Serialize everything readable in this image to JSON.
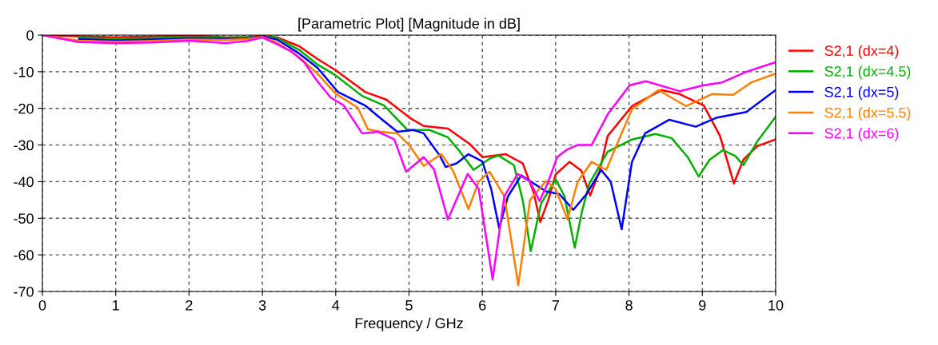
{
  "chart_data": {
    "type": "line",
    "title": "[Parametric Plot] [Magnitude in dB]",
    "xlabel": "Frequency / GHz",
    "xlim": [
      0,
      10
    ],
    "ylim": [
      -70,
      0
    ],
    "xticks": [
      0,
      1,
      2,
      3,
      4,
      5,
      6,
      7,
      8,
      9,
      10
    ],
    "yticks": [
      -70,
      -60,
      -50,
      -40,
      -30,
      -20,
      -10,
      0
    ],
    "grid": true,
    "legend": "top right",
    "line_style": "solid",
    "marker": "none",
    "series": [
      {
        "name": "S2,1 (dx=4)",
        "color": "#ff0000",
        "x": [
          0,
          0.5,
          1,
          1.5,
          2,
          2.5,
          2.8,
          3,
          3.2,
          3.5,
          3.75,
          4,
          4.4,
          4.69,
          5.02,
          5.2,
          5.53,
          5.82,
          6.0,
          6.32,
          6.55,
          6.7,
          6.79,
          6.9,
          7.0,
          7.19,
          7.35,
          7.47,
          7.6,
          7.71,
          8.04,
          8.44,
          8.69,
          9.02,
          9.24,
          9.43,
          9.56,
          9.75,
          10
        ],
        "values": [
          0,
          -0.3,
          -0.6,
          -0.4,
          -0.1,
          -0.6,
          -0.5,
          -0.2,
          -0.6,
          -3,
          -6.5,
          -9.6,
          -15.5,
          -17.6,
          -22.7,
          -24.8,
          -25.5,
          -29.6,
          -33.3,
          -32.5,
          -35,
          -43,
          -51,
          -45,
          -38,
          -34.6,
          -37,
          -43.8,
          -37,
          -27.5,
          -19.4,
          -15,
          -16.1,
          -19.2,
          -27.5,
          -40.5,
          -34,
          -30.3,
          -28.5
        ]
      },
      {
        "name": "S2,1 (dx=4.5)",
        "color": "#00b000",
        "x": [
          0.5,
          1,
          1.5,
          2,
          2.5,
          2.8,
          3,
          3.2,
          3.5,
          3.75,
          4,
          4.36,
          4.66,
          4.98,
          5.28,
          5.53,
          5.67,
          5.88,
          6.11,
          6.22,
          6.43,
          6.55,
          6.66,
          6.8,
          7.0,
          7.12,
          7.26,
          7.36,
          7.46,
          7.71,
          8.04,
          8.36,
          8.58,
          8.8,
          8.95,
          9.1,
          9.28,
          9.45,
          9.56,
          9.75,
          10
        ],
        "values": [
          -0.7,
          -1.0,
          -0.8,
          -0.5,
          -0.8,
          -0.7,
          -0.3,
          -0.8,
          -4,
          -8,
          -11,
          -16.6,
          -19.2,
          -25.9,
          -25.9,
          -27.9,
          -31.2,
          -36.8,
          -33.6,
          -32.9,
          -35.5,
          -45,
          -59,
          -46,
          -39.4,
          -44,
          -58,
          -48,
          -40.5,
          -31.8,
          -28.5,
          -27,
          -28.1,
          -33.3,
          -38.6,
          -34,
          -31.4,
          -33,
          -35.5,
          -29,
          -22.3
        ]
      },
      {
        "name": "S2,1 (dx=5)",
        "color": "#0000ff",
        "x": [
          0.5,
          1,
          1.5,
          2,
          2.5,
          2.8,
          3,
          3.2,
          3.5,
          3.75,
          4.03,
          4.4,
          4.66,
          4.84,
          5.06,
          5.2,
          5.42,
          5.5,
          5.65,
          5.81,
          6.0,
          6.12,
          6.23,
          6.35,
          6.53,
          6.87,
          7.05,
          7.24,
          7.42,
          7.62,
          7.75,
          7.9,
          8.04,
          8.22,
          8.55,
          8.91,
          9.2,
          9.6,
          10
        ],
        "values": [
          -1.1,
          -1.4,
          -1.2,
          -0.8,
          -1,
          -0.9,
          -0.4,
          -1.2,
          -5,
          -8.9,
          -15.5,
          -19.2,
          -23.5,
          -26.4,
          -25.9,
          -26.8,
          -32.9,
          -36,
          -35,
          -32.5,
          -34.5,
          -42,
          -52.7,
          -44,
          -38.3,
          -42.7,
          -43.4,
          -47.7,
          -43.4,
          -36.8,
          -40,
          -53,
          -34.6,
          -26.8,
          -23.1,
          -25,
          -22.5,
          -21,
          -15
        ]
      },
      {
        "name": "S2,1 (dx=5.5)",
        "color": "#ff8000",
        "x": [
          0,
          0.5,
          1,
          1.5,
          2,
          2.5,
          2.8,
          3,
          3.2,
          3.5,
          3.75,
          4.0,
          4.3,
          4.44,
          4.62,
          4.84,
          5.0,
          5.2,
          5.44,
          5.6,
          5.81,
          5.95,
          6.1,
          6.3,
          6.49,
          6.65,
          6.87,
          7.0,
          7.16,
          7.3,
          7.49,
          7.69,
          7.84,
          8.04,
          8.4,
          8.78,
          9.13,
          9.42,
          9.67,
          10
        ],
        "values": [
          0,
          -1.5,
          -1.8,
          -1.6,
          -1.2,
          -1.3,
          -1.1,
          -0.5,
          -2,
          -6,
          -10.5,
          -16,
          -19.8,
          -25.7,
          -26.4,
          -26.8,
          -30,
          -35.7,
          -32.5,
          -37,
          -47.5,
          -40,
          -37.3,
          -44,
          -68.3,
          -45,
          -39.8,
          -42,
          -50.3,
          -40,
          -34.6,
          -36.8,
          -29.6,
          -20.3,
          -15,
          -19.4,
          -16.1,
          -16.3,
          -12.9,
          -10.5
        ]
      },
      {
        "name": "S2,1 (dx=6)",
        "color": "#ff00ff",
        "x": [
          0,
          0.5,
          1,
          1.5,
          2,
          2.5,
          2.8,
          3,
          3.2,
          3.4,
          3.57,
          3.75,
          3.93,
          4.11,
          4.36,
          4.58,
          4.8,
          4.96,
          5.2,
          5.34,
          5.53,
          5.8,
          5.95,
          6.14,
          6.3,
          6.48,
          6.65,
          6.78,
          6.9,
          7.02,
          7.16,
          7.3,
          7.49,
          7.71,
          8.01,
          8.23,
          8.69,
          9.02,
          9.27,
          9.6,
          10
        ],
        "values": [
          0,
          -1.9,
          -2.2,
          -2.0,
          -1.5,
          -2.2,
          -1.6,
          -0.6,
          -2.5,
          -4.5,
          -7.4,
          -12.6,
          -17,
          -19.2,
          -26.8,
          -26.4,
          -28.5,
          -37.3,
          -33.3,
          -36.6,
          -50.3,
          -37.9,
          -42,
          -66.7,
          -44,
          -37.9,
          -40,
          -45.3,
          -40,
          -33.3,
          -31.2,
          -30,
          -30,
          -21.6,
          -13.7,
          -12.6,
          -15.3,
          -13.7,
          -12.9,
          -10,
          -7.4
        ]
      }
    ]
  }
}
